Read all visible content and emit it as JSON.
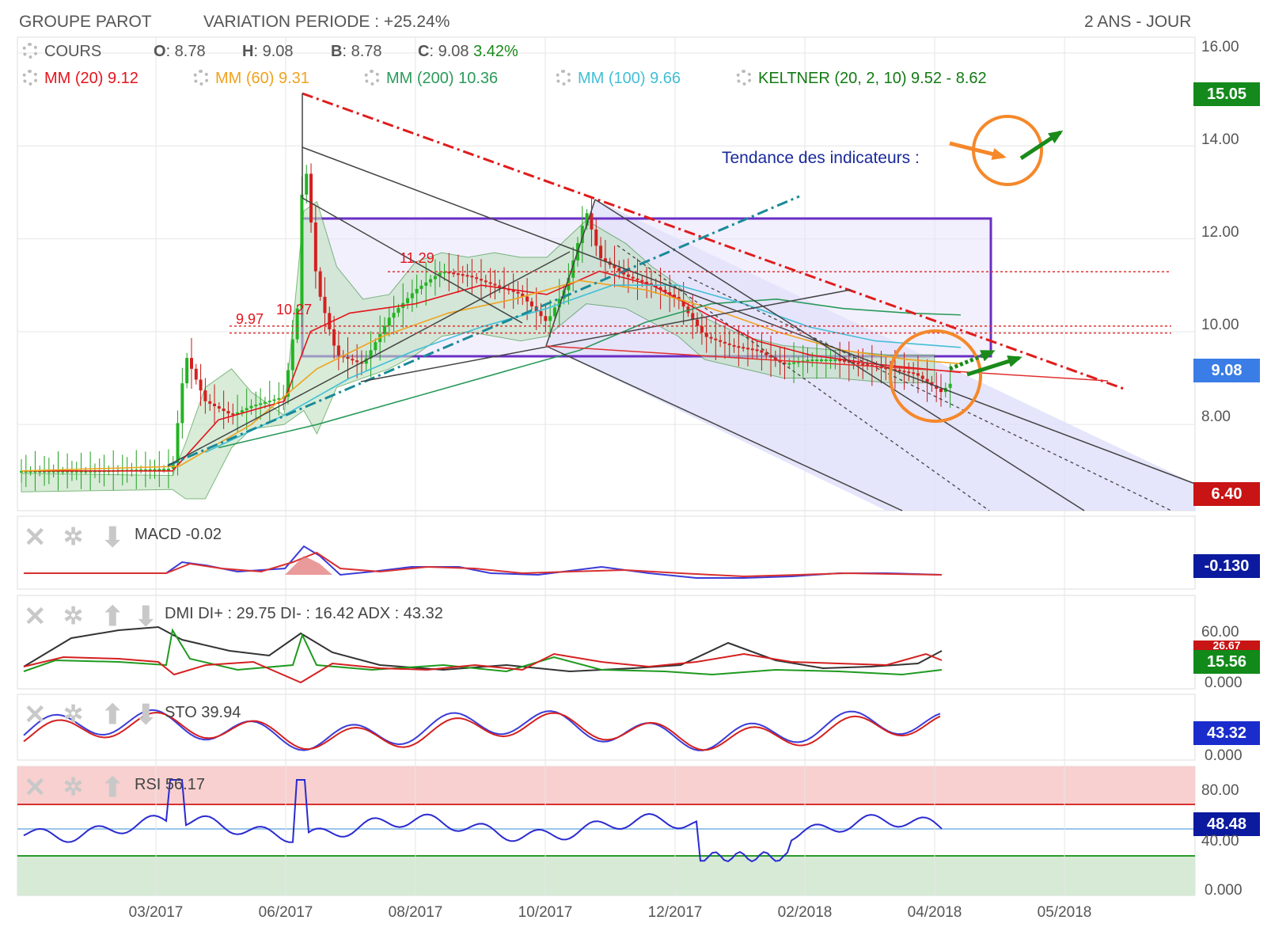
{
  "header": {
    "title": "GROUPE PAROT",
    "variation": "VARIATION PERIODE : +25.24%",
    "period": "2 ANS - JOUR"
  },
  "legend": {
    "cours_label": "COURS",
    "o_label": "O",
    "o_value": ": 8.78",
    "h_label": "H",
    "h_value": ": 9.08",
    "b_label": "B",
    "b_value": ": 8.78",
    "c_label": "C",
    "c_value": ": 9.08",
    "change": "3.42%",
    "mm20": "MM (20)  9.12",
    "mm60": "MM (60)  9.31",
    "mm200": "MM (200)  10.36",
    "mm100": "MM (100)  9.66",
    "keltner": "KELTNER (20, 2, 10)  9.52 - 8.62"
  },
  "annotations": {
    "tendance": "Tendance des indicateurs :",
    "level_1129": "11.29",
    "level_997": "9.97",
    "level_1027": "10.27"
  },
  "indicators": {
    "macd": {
      "label": "MACD  -0.02",
      "tag": "-0.130",
      "tag_color": "#0b1a9e"
    },
    "dmi": {
      "label": "DMI  DI+ : 29.75 DI- : 16.42 ADX : 43.32",
      "tag_top": "26.67",
      "tag": "15.56",
      "tag_color": "#118a1a"
    },
    "sto": {
      "label": "STO  39.94",
      "tag": "43.32",
      "tag_color": "#1a2ccc"
    },
    "rsi": {
      "label": "RSI  56.17",
      "tag": "48.48",
      "tag_color": "#0b1a9e"
    }
  },
  "price_tags": {
    "top": {
      "value": "15.05",
      "color": "#138a1b"
    },
    "current": {
      "value": "9.08",
      "color": "#3b7de6"
    },
    "bottom": {
      "value": "6.40",
      "color": "#c81414"
    }
  },
  "axes": {
    "main_ticks": [
      "16.00",
      "14.00",
      "12.00",
      "10.00",
      "8.00"
    ],
    "dmi_ticks": [
      "60.00",
      "0.000"
    ],
    "sto_ticks": [
      "0.000"
    ],
    "rsi_ticks": [
      "80.00",
      "40.00",
      "0.000"
    ],
    "x_ticks": [
      "03/2017",
      "06/2017",
      "08/2017",
      "10/2017",
      "12/2017",
      "02/2018",
      "04/2018",
      "05/2018"
    ]
  },
  "colors": {
    "mm20": "#e4141c",
    "mm60": "#f0a21e",
    "mm200": "#2a9a5a",
    "mm100": "#42bfd6",
    "keltner": "#137a13",
    "trend_red": "#e01c1c",
    "trend_teal": "#1a8a98",
    "box": "#6a2ec4",
    "orange": "#f5882a",
    "green_arrow": "#1a8a1a"
  },
  "chart_data": {
    "type": "line",
    "x_range": [
      "2016-12",
      "2018-05"
    ],
    "ylim": [
      6.4,
      16.0
    ],
    "series": [
      {
        "name": "COURS",
        "values": [
          [
            0,
            7.0
          ],
          [
            10,
            7.0
          ],
          [
            23,
            7.05
          ],
          [
            25,
            9.5
          ],
          [
            28,
            8.5
          ],
          [
            32,
            8.2
          ],
          [
            35,
            8.4
          ],
          [
            40,
            8.6
          ],
          [
            42,
            10.5
          ],
          [
            43,
            14.0
          ],
          [
            45,
            11.0
          ],
          [
            48,
            9.5
          ],
          [
            52,
            9.3
          ],
          [
            56,
            10.3
          ],
          [
            60,
            10.9
          ],
          [
            64,
            11.3
          ],
          [
            68,
            11.2
          ],
          [
            72,
            11.0
          ],
          [
            76,
            10.8
          ],
          [
            80,
            10.2
          ],
          [
            83,
            11.0
          ],
          [
            86,
            12.6
          ],
          [
            88,
            11.6
          ],
          [
            92,
            11.2
          ],
          [
            96,
            11.0
          ],
          [
            100,
            10.7
          ],
          [
            104,
            9.9
          ],
          [
            108,
            9.7
          ],
          [
            112,
            9.6
          ],
          [
            116,
            9.3
          ],
          [
            120,
            9.4
          ],
          [
            124,
            9.4
          ],
          [
            128,
            9.3
          ],
          [
            132,
            9.2
          ],
          [
            136,
            9.1
          ],
          [
            140,
            8.7
          ],
          [
            143,
            9.08
          ]
        ]
      },
      {
        "name": "MM (20)",
        "values": [
          [
            0,
            7.0
          ],
          [
            23,
            7.0
          ],
          [
            30,
            8.1
          ],
          [
            40,
            8.5
          ],
          [
            44,
            10.0
          ],
          [
            50,
            10.4
          ],
          [
            60,
            10.6
          ],
          [
            70,
            11.0
          ],
          [
            80,
            10.8
          ],
          [
            88,
            11.3
          ],
          [
            96,
            11.0
          ],
          [
            104,
            10.4
          ],
          [
            112,
            9.8
          ],
          [
            120,
            9.5
          ],
          [
            130,
            9.3
          ],
          [
            143,
            9.12
          ]
        ]
      },
      {
        "name": "MM (60)",
        "values": [
          [
            0,
            7.0
          ],
          [
            24,
            7.1
          ],
          [
            35,
            8.0
          ],
          [
            45,
            9.2
          ],
          [
            55,
            9.9
          ],
          [
            65,
            10.4
          ],
          [
            75,
            10.7
          ],
          [
            85,
            11.1
          ],
          [
            95,
            10.9
          ],
          [
            105,
            10.5
          ],
          [
            115,
            10.0
          ],
          [
            125,
            9.6
          ],
          [
            135,
            9.4
          ],
          [
            143,
            9.31
          ]
        ]
      },
      {
        "name": "MM (200)",
        "values": [
          [
            30,
            7.5
          ],
          [
            45,
            8.0
          ],
          [
            60,
            8.6
          ],
          [
            75,
            9.2
          ],
          [
            85,
            9.6
          ],
          [
            95,
            10.2
          ],
          [
            105,
            10.6
          ],
          [
            115,
            10.7
          ],
          [
            125,
            10.5
          ],
          [
            135,
            10.4
          ],
          [
            143,
            10.36
          ]
        ]
      },
      {
        "name": "MM (100)",
        "values": [
          [
            28,
            7.4
          ],
          [
            40,
            8.2
          ],
          [
            50,
            9.0
          ],
          [
            60,
            9.6
          ],
          [
            70,
            10.1
          ],
          [
            80,
            10.5
          ],
          [
            90,
            11.0
          ],
          [
            100,
            11.0
          ],
          [
            110,
            10.6
          ],
          [
            120,
            10.1
          ],
          [
            130,
            9.8
          ],
          [
            143,
            9.66
          ]
        ]
      }
    ],
    "indicators": {
      "macd": {
        "value": -0.02
      },
      "dmi": {
        "di_plus": 29.75,
        "di_minus": 16.42,
        "adx": 43.32
      },
      "sto": {
        "value": 39.94
      },
      "rsi": {
        "value": 56.17,
        "levels": [
          80,
          40
        ]
      }
    }
  }
}
